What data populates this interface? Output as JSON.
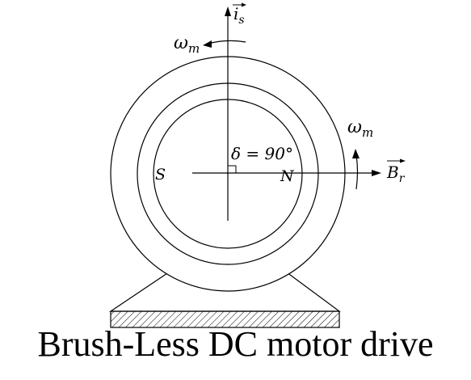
{
  "caption": "Brush-Less DC motor drive",
  "labels": {
    "current_vector_name": "i",
    "current_vector_subscript": "s",
    "speed_top_name": "ω",
    "speed_top_subscript": "m",
    "speed_right_name": "ω",
    "speed_right_subscript": "m",
    "flux_vector_name": "B",
    "flux_vector_subscript": "r",
    "pole_south": "S",
    "pole_north": "N",
    "angle": "δ = 90°"
  }
}
